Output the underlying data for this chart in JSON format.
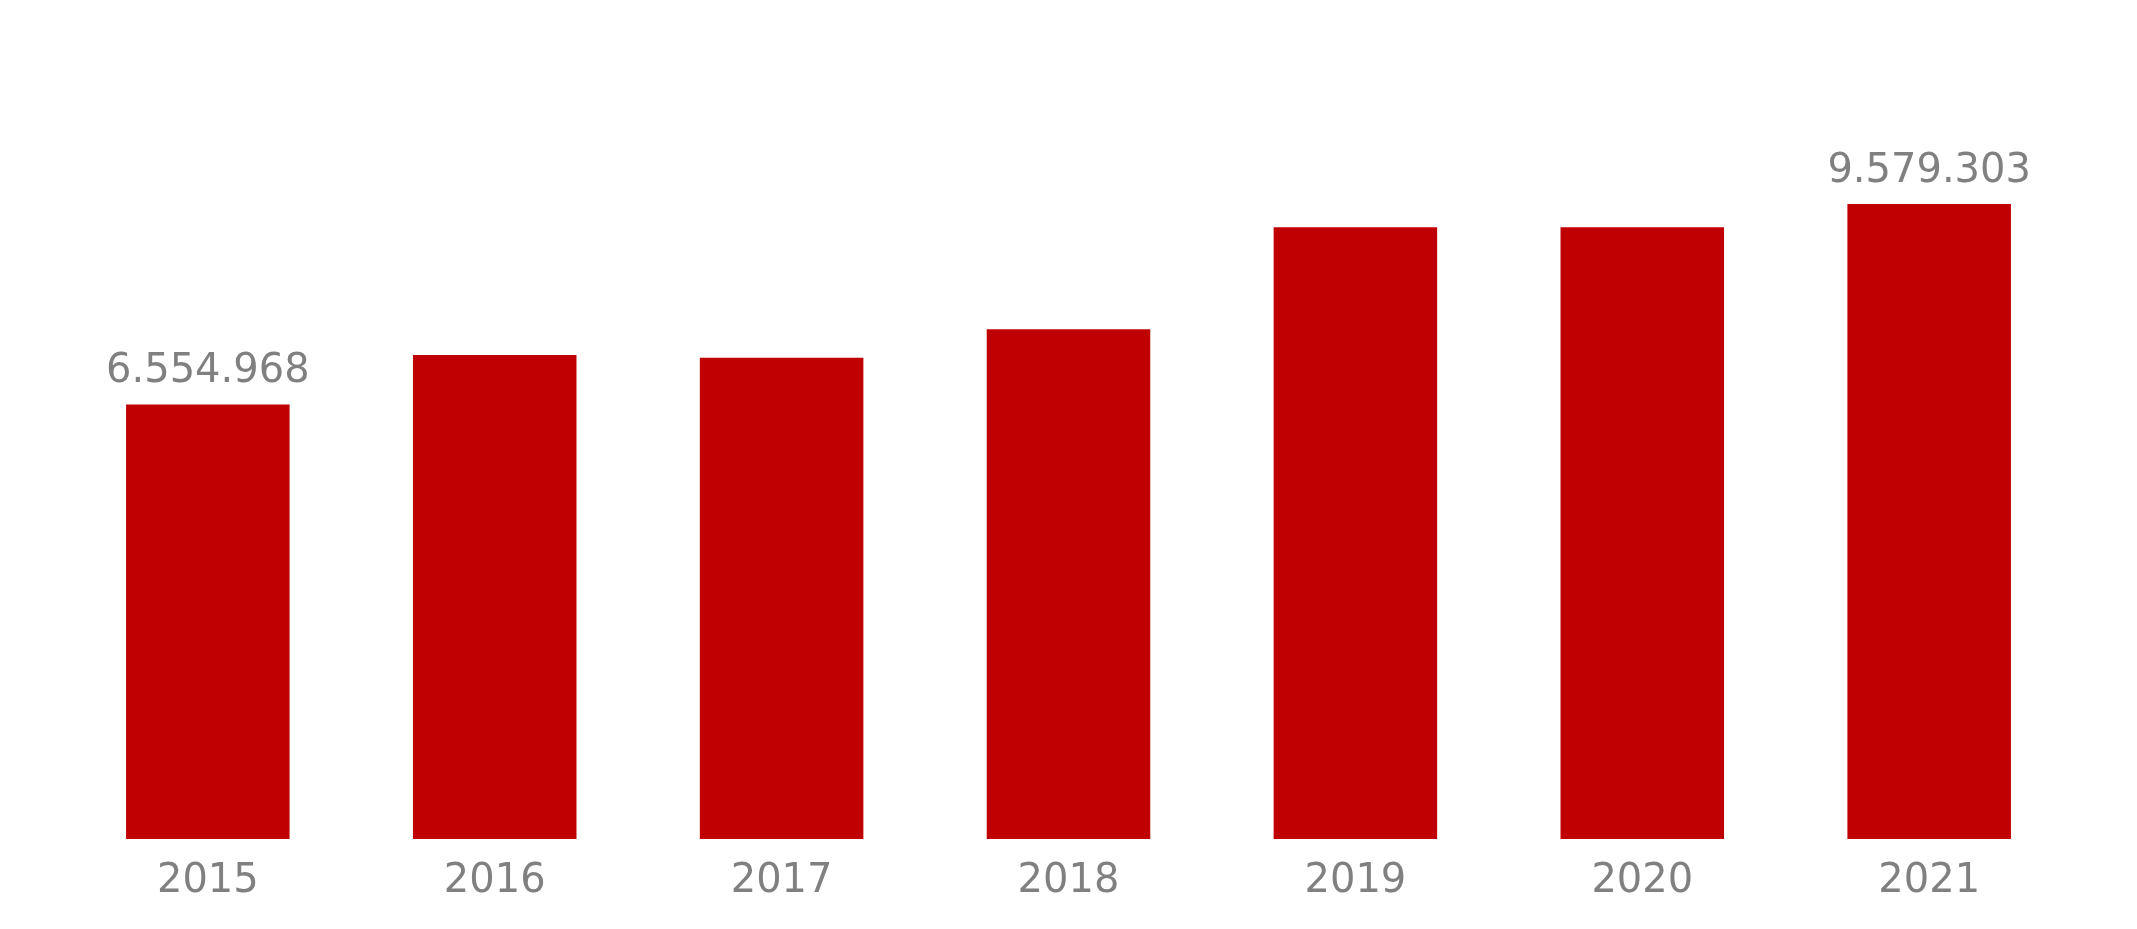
{
  "chart_data": {
    "type": "bar",
    "categories": [
      "2015",
      "2016",
      "2017",
      "2018",
      "2019",
      "2020",
      "2021"
    ],
    "values": [
      6554968,
      7300000,
      7260000,
      7690000,
      9230000,
      9230000,
      9579303
    ],
    "value_labels": [
      "6.554.968",
      null,
      null,
      null,
      null,
      null,
      "9.579.303"
    ],
    "color": "#c00000",
    "tick_labels": "x",
    "grid": false
  }
}
